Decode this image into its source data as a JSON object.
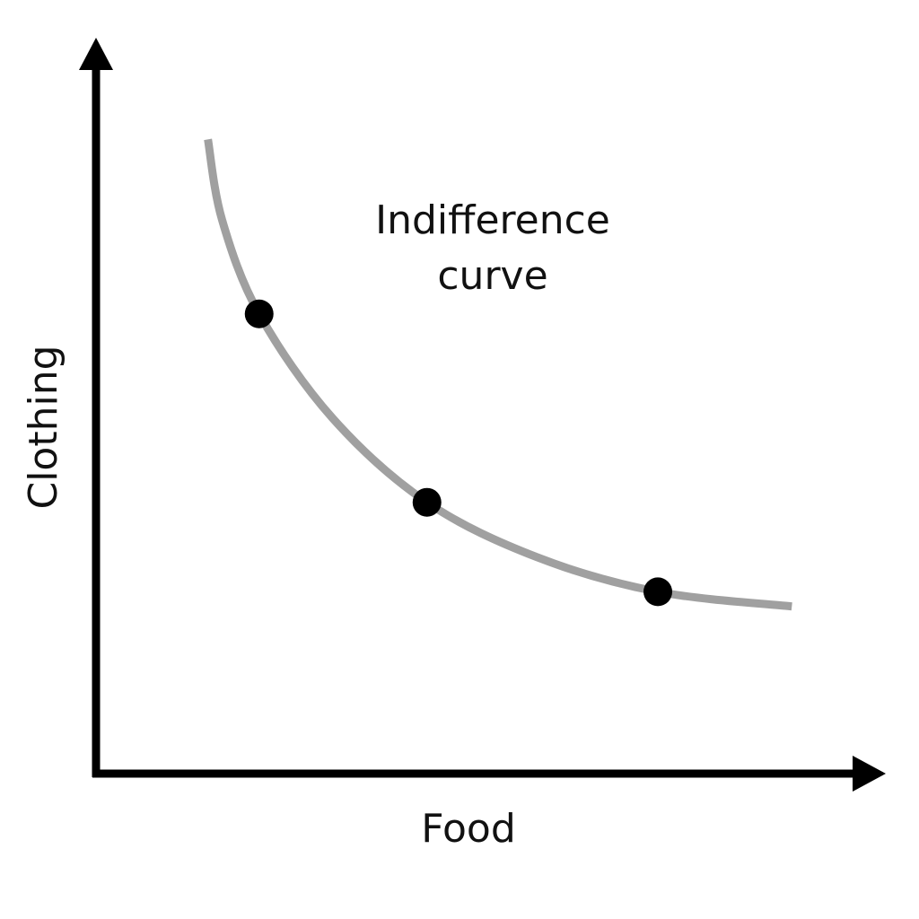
{
  "chart_data": {
    "type": "line",
    "title": "",
    "xlabel": "Food",
    "ylabel": "Clothing",
    "xlim": [
      0,
      10
    ],
    "ylim": [
      0,
      10
    ],
    "grid": false,
    "annotation": [
      "Indifference",
      "curve"
    ],
    "series": [
      {
        "name": "Indifference curve",
        "color": "#a0a0a0",
        "x": [
          1.42,
          1.6,
          2.07,
          3.0,
          4.2,
          5.6,
          7.13,
          8.83
        ],
        "y": [
          8.65,
          7.55,
          6.27,
          4.85,
          3.7,
          2.95,
          2.48,
          2.28
        ]
      }
    ],
    "points": {
      "color": "#000000",
      "x": [
        2.07,
        4.2,
        7.13
      ],
      "y": [
        6.27,
        3.7,
        2.48
      ]
    }
  }
}
